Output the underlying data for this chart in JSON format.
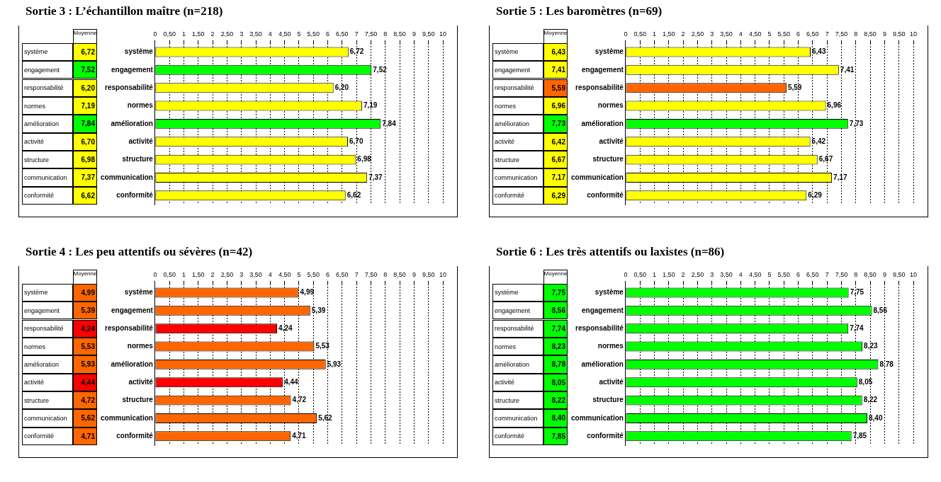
{
  "chart_data": [
    {
      "type": "bar",
      "orientation": "horizontal",
      "title": "Sortie 3 : L’échantillon maître (n=218)",
      "annotations": [
        "Moyenne"
      ],
      "categories": [
        "système",
        "engagement",
        "responsabilité",
        "normes",
        "amélioration",
        "activité",
        "structure",
        "communication",
        "conformité"
      ],
      "values": [
        6.72,
        7.52,
        6.2,
        7.19,
        7.84,
        6.7,
        6.98,
        7.37,
        6.62
      ],
      "value_labels": [
        "6,72",
        "7,52",
        "6,20",
        "7,19",
        "7,84",
        "6,70",
        "6,98",
        "7,37",
        "6,62"
      ],
      "colors": [
        "#ffff00",
        "#00ff00",
        "#ffff00",
        "#ffff00",
        "#00ff00",
        "#ffff00",
        "#ffff00",
        "#ffff00",
        "#ffff00"
      ],
      "xlim": [
        0,
        10
      ],
      "xticks": [
        0,
        {
          "value": 0.5,
          "label": "0,50"
        },
        1,
        {
          "value": 1.5,
          "label": "1,50"
        },
        2,
        {
          "value": 2.5,
          "label": "2,50"
        },
        3,
        {
          "value": 3.5,
          "label": "3,50"
        },
        4,
        {
          "value": 4.5,
          "label": "4,50"
        },
        5,
        {
          "value": 5.5,
          "label": "5,50"
        },
        6,
        {
          "value": 6.5,
          "label": "6,50"
        },
        7,
        {
          "value": 7.5,
          "label": "7,50"
        },
        8,
        {
          "value": 8.5,
          "label": "8,50"
        },
        9,
        {
          "value": 9.5,
          "label": "9,50"
        },
        10
      ],
      "grid": "x"
    },
    {
      "type": "bar",
      "orientation": "horizontal",
      "title": "Sortie 5 : Les baromètres (n=69)",
      "annotations": [
        "Moyenne"
      ],
      "categories": [
        "système",
        "engagement",
        "responsabilité",
        "normes",
        "amélioration",
        "activité",
        "structure",
        "communication",
        "conformité"
      ],
      "values": [
        6.43,
        7.41,
        5.59,
        6.96,
        7.73,
        6.42,
        6.67,
        7.17,
        6.29
      ],
      "value_labels": [
        "6,43",
        "7,41",
        "5,59",
        "6,96",
        "7,73",
        "6,42",
        "6,67",
        "7,17",
        "6,29"
      ],
      "colors": [
        "#ffff00",
        "#ffff00",
        "#ff6600",
        "#ffff00",
        "#00ff00",
        "#ffff00",
        "#ffff00",
        "#ffff00",
        "#ffff00"
      ],
      "xlim": [
        0,
        10
      ],
      "xticks": [
        0,
        {
          "value": 0.5,
          "label": "0,50"
        },
        1,
        {
          "value": 1.5,
          "label": "1,50"
        },
        2,
        {
          "value": 2.5,
          "label": "2,50"
        },
        3,
        {
          "value": 3.5,
          "label": "3,50"
        },
        4,
        {
          "value": 4.5,
          "label": "4,50"
        },
        5,
        {
          "value": 5.5,
          "label": "5,50"
        },
        6,
        {
          "value": 6.5,
          "label": "6,50"
        },
        7,
        {
          "value": 7.5,
          "label": "7,50"
        },
        8,
        {
          "value": 8.5,
          "label": "8,50"
        },
        9,
        {
          "value": 9.5,
          "label": "9,50"
        },
        10
      ],
      "grid": "x"
    },
    {
      "type": "bar",
      "orientation": "horizontal",
      "title": "Sortie 4 : Les peu attentifs ou sévères (n=42)",
      "annotations": [
        "Moyenne"
      ],
      "categories": [
        "système",
        "engagement",
        "responsabilité",
        "normes",
        "amélioration",
        "activité",
        "structure",
        "communication",
        "conformité"
      ],
      "values": [
        4.99,
        5.39,
        4.24,
        5.53,
        5.93,
        4.44,
        4.72,
        5.62,
        4.71
      ],
      "value_labels": [
        "4,99",
        "5,39",
        "4,24",
        "5,53",
        "5,93",
        "4,44",
        "4,72",
        "5,62",
        "4,71"
      ],
      "colors": [
        "#ff6600",
        "#ff6600",
        "#ff0000",
        "#ff6600",
        "#ff6600",
        "#ff0000",
        "#ff6600",
        "#ff6600",
        "#ff6600"
      ],
      "xlim": [
        0,
        10
      ],
      "xticks": [
        0,
        {
          "value": 0.5,
          "label": "0,50"
        },
        1,
        {
          "value": 1.5,
          "label": "1,50"
        },
        2,
        {
          "value": 2.5,
          "label": "2,50"
        },
        3,
        {
          "value": 3.5,
          "label": "3,50"
        },
        4,
        {
          "value": 4.5,
          "label": "4,50"
        },
        5,
        {
          "value": 5.5,
          "label": "5,50"
        },
        6,
        {
          "value": 6.5,
          "label": "6,50"
        },
        7,
        {
          "value": 7.5,
          "label": "7,50"
        },
        8,
        {
          "value": 8.5,
          "label": "8,50"
        },
        9,
        {
          "value": 9.5,
          "label": "9,50"
        },
        10
      ],
      "grid": "x"
    },
    {
      "type": "bar",
      "orientation": "horizontal",
      "title": "Sortie 6 : Les très attentifs ou laxistes (n=86)",
      "annotations": [
        "Moyenne"
      ],
      "categories": [
        "système",
        "engagement",
        "responsabilité",
        "normes",
        "amélioration",
        "activité",
        "structure",
        "communication",
        "conformité"
      ],
      "values": [
        7.75,
        8.56,
        7.74,
        8.23,
        8.78,
        8.05,
        8.22,
        8.4,
        7.85
      ],
      "value_labels": [
        "7,75",
        "8,56",
        "7,74",
        "8,23",
        "8,78",
        "8,05",
        "8,22",
        "8,40",
        "7,85"
      ],
      "colors": [
        "#00ff00",
        "#00ff00",
        "#00ff00",
        "#00ff00",
        "#00ff00",
        "#00ff00",
        "#00ff00",
        "#00ff00",
        "#00ff00"
      ],
      "xlim": [
        0,
        10
      ],
      "xticks": [
        0,
        {
          "value": 0.5,
          "label": "0,50"
        },
        1,
        {
          "value": 1.5,
          "label": "1,50"
        },
        2,
        {
          "value": 2.5,
          "label": "2,50"
        },
        3,
        {
          "value": 3.5,
          "label": "3,50"
        },
        4,
        {
          "value": 4.5,
          "label": "4,50"
        },
        5,
        {
          "value": 5.5,
          "label": "5,50"
        },
        6,
        {
          "value": 6.5,
          "label": "6,50"
        },
        7,
        {
          "value": 7.5,
          "label": "7,50"
        },
        8,
        {
          "value": 8.5,
          "label": "8,50"
        },
        9,
        {
          "value": 9.5,
          "label": "9,50"
        },
        10
      ],
      "grid": "x"
    }
  ]
}
